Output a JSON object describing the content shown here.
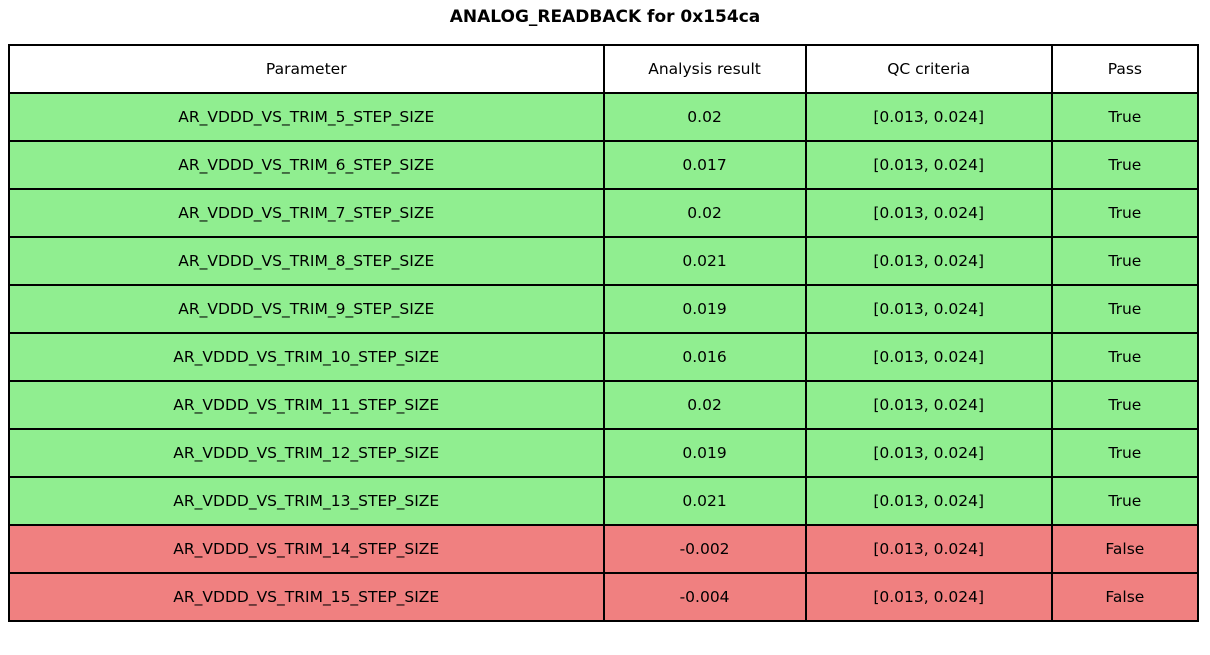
{
  "title": "ANALOG_READBACK for 0x154ca",
  "colors": {
    "pass_row_bg": "#90EE90",
    "fail_row_bg": "#F08080",
    "header_bg": "#FFFFFF",
    "border": "#000000",
    "text": "#000000"
  },
  "table": {
    "headers": [
      "Parameter",
      "Analysis result",
      "QC criteria",
      "Pass"
    ],
    "rows": [
      {
        "parameter": "AR_VDDD_VS_TRIM_5_STEP_SIZE",
        "analysis_result": "0.02",
        "qc_criteria": "[0.013, 0.024]",
        "pass": "True"
      },
      {
        "parameter": "AR_VDDD_VS_TRIM_6_STEP_SIZE",
        "analysis_result": "0.017",
        "qc_criteria": "[0.013, 0.024]",
        "pass": "True"
      },
      {
        "parameter": "AR_VDDD_VS_TRIM_7_STEP_SIZE",
        "analysis_result": "0.02",
        "qc_criteria": "[0.013, 0.024]",
        "pass": "True"
      },
      {
        "parameter": "AR_VDDD_VS_TRIM_8_STEP_SIZE",
        "analysis_result": "0.021",
        "qc_criteria": "[0.013, 0.024]",
        "pass": "True"
      },
      {
        "parameter": "AR_VDDD_VS_TRIM_9_STEP_SIZE",
        "analysis_result": "0.019",
        "qc_criteria": "[0.013, 0.024]",
        "pass": "True"
      },
      {
        "parameter": "AR_VDDD_VS_TRIM_10_STEP_SIZE",
        "analysis_result": "0.016",
        "qc_criteria": "[0.013, 0.024]",
        "pass": "True"
      },
      {
        "parameter": "AR_VDDD_VS_TRIM_11_STEP_SIZE",
        "analysis_result": "0.02",
        "qc_criteria": "[0.013, 0.024]",
        "pass": "True"
      },
      {
        "parameter": "AR_VDDD_VS_TRIM_12_STEP_SIZE",
        "analysis_result": "0.019",
        "qc_criteria": "[0.013, 0.024]",
        "pass": "True"
      },
      {
        "parameter": "AR_VDDD_VS_TRIM_13_STEP_SIZE",
        "analysis_result": "0.021",
        "qc_criteria": "[0.013, 0.024]",
        "pass": "True"
      },
      {
        "parameter": "AR_VDDD_VS_TRIM_14_STEP_SIZE",
        "analysis_result": "-0.002",
        "qc_criteria": "[0.013, 0.024]",
        "pass": "False"
      },
      {
        "parameter": "AR_VDDD_VS_TRIM_15_STEP_SIZE",
        "analysis_result": "-0.004",
        "qc_criteria": "[0.013, 0.024]",
        "pass": "False"
      }
    ]
  },
  "chart_data": {
    "type": "table",
    "title": "ANALOG_READBACK for 0x154ca",
    "columns": [
      "Parameter",
      "Analysis result",
      "QC criteria",
      "Pass"
    ],
    "rows": [
      [
        "AR_VDDD_VS_TRIM_5_STEP_SIZE",
        0.02,
        "[0.013, 0.024]",
        true
      ],
      [
        "AR_VDDD_VS_TRIM_6_STEP_SIZE",
        0.017,
        "[0.013, 0.024]",
        true
      ],
      [
        "AR_VDDD_VS_TRIM_7_STEP_SIZE",
        0.02,
        "[0.013, 0.024]",
        true
      ],
      [
        "AR_VDDD_VS_TRIM_8_STEP_SIZE",
        0.021,
        "[0.013, 0.024]",
        true
      ],
      [
        "AR_VDDD_VS_TRIM_9_STEP_SIZE",
        0.019,
        "[0.013, 0.024]",
        true
      ],
      [
        "AR_VDDD_VS_TRIM_10_STEP_SIZE",
        0.016,
        "[0.013, 0.024]",
        true
      ],
      [
        "AR_VDDD_VS_TRIM_11_STEP_SIZE",
        0.02,
        "[0.013, 0.024]",
        true
      ],
      [
        "AR_VDDD_VS_TRIM_12_STEP_SIZE",
        0.019,
        "[0.013, 0.024]",
        true
      ],
      [
        "AR_VDDD_VS_TRIM_13_STEP_SIZE",
        0.021,
        "[0.013, 0.024]",
        true
      ],
      [
        "AR_VDDD_VS_TRIM_14_STEP_SIZE",
        -0.002,
        "[0.013, 0.024]",
        false
      ],
      [
        "AR_VDDD_VS_TRIM_15_STEP_SIZE",
        -0.004,
        "[0.013, 0.024]",
        false
      ]
    ],
    "qc_lower_bound": 0.013,
    "qc_upper_bound": 0.024,
    "pass_count": 9,
    "fail_count": 2
  }
}
